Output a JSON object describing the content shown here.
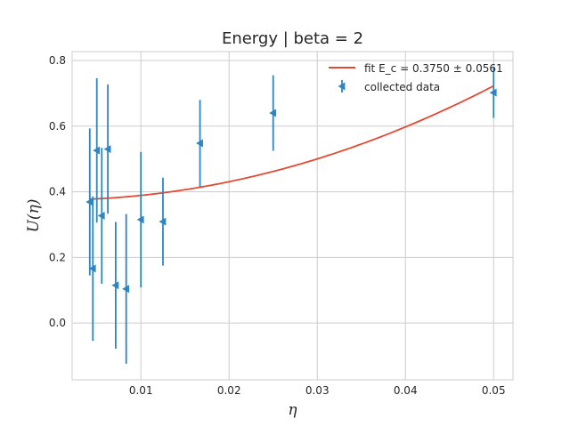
{
  "chart_data": {
    "type": "scatter",
    "title": "Energy | beta = 2",
    "xlabel": "η",
    "ylabel": "U(η)",
    "xlim": [
      0.0022,
      0.0522
    ],
    "ylim": [
      -0.173,
      0.827
    ],
    "xticks": [
      0.01,
      0.02,
      0.03,
      0.04,
      0.05
    ],
    "xtick_labels": [
      "0.01",
      "0.02",
      "0.03",
      "0.04",
      "0.05"
    ],
    "yticks": [
      0.0,
      0.2,
      0.4,
      0.6,
      0.8
    ],
    "ytick_labels": [
      "0.0",
      "0.2",
      "0.4",
      "0.6",
      "0.8"
    ],
    "grid": true,
    "legend_position": "top-right",
    "colors": {
      "fit": "#e24a33",
      "data": "#2e86c1",
      "grid": "#cccccc",
      "axes_edge": "#cccccc"
    },
    "series": [
      {
        "name": "collected data",
        "kind": "errorbar",
        "marker": "triangle-left",
        "points": [
          {
            "x": 0.0042,
            "y": 0.369,
            "err": 0.224
          },
          {
            "x": 0.00455,
            "y": 0.166,
            "err": 0.22
          },
          {
            "x": 0.005,
            "y": 0.526,
            "err": 0.22
          },
          {
            "x": 0.00556,
            "y": 0.327,
            "err": 0.207
          },
          {
            "x": 0.00625,
            "y": 0.53,
            "err": 0.197
          },
          {
            "x": 0.00714,
            "y": 0.115,
            "err": 0.193
          },
          {
            "x": 0.00833,
            "y": 0.104,
            "err": 0.228
          },
          {
            "x": 0.01,
            "y": 0.315,
            "err": 0.206
          },
          {
            "x": 0.0125,
            "y": 0.309,
            "err": 0.134
          },
          {
            "x": 0.0167,
            "y": 0.548,
            "err": 0.132
          },
          {
            "x": 0.025,
            "y": 0.64,
            "err": 0.115
          },
          {
            "x": 0.05,
            "y": 0.702,
            "err": 0.077
          }
        ]
      },
      {
        "name": "fit E_c = 0.3750 ± 0.0561",
        "kind": "line",
        "function": "quadratic",
        "intercept": 0.375,
        "coefficient": 139.0,
        "x_range": [
          0.0042,
          0.05
        ]
      }
    ]
  }
}
